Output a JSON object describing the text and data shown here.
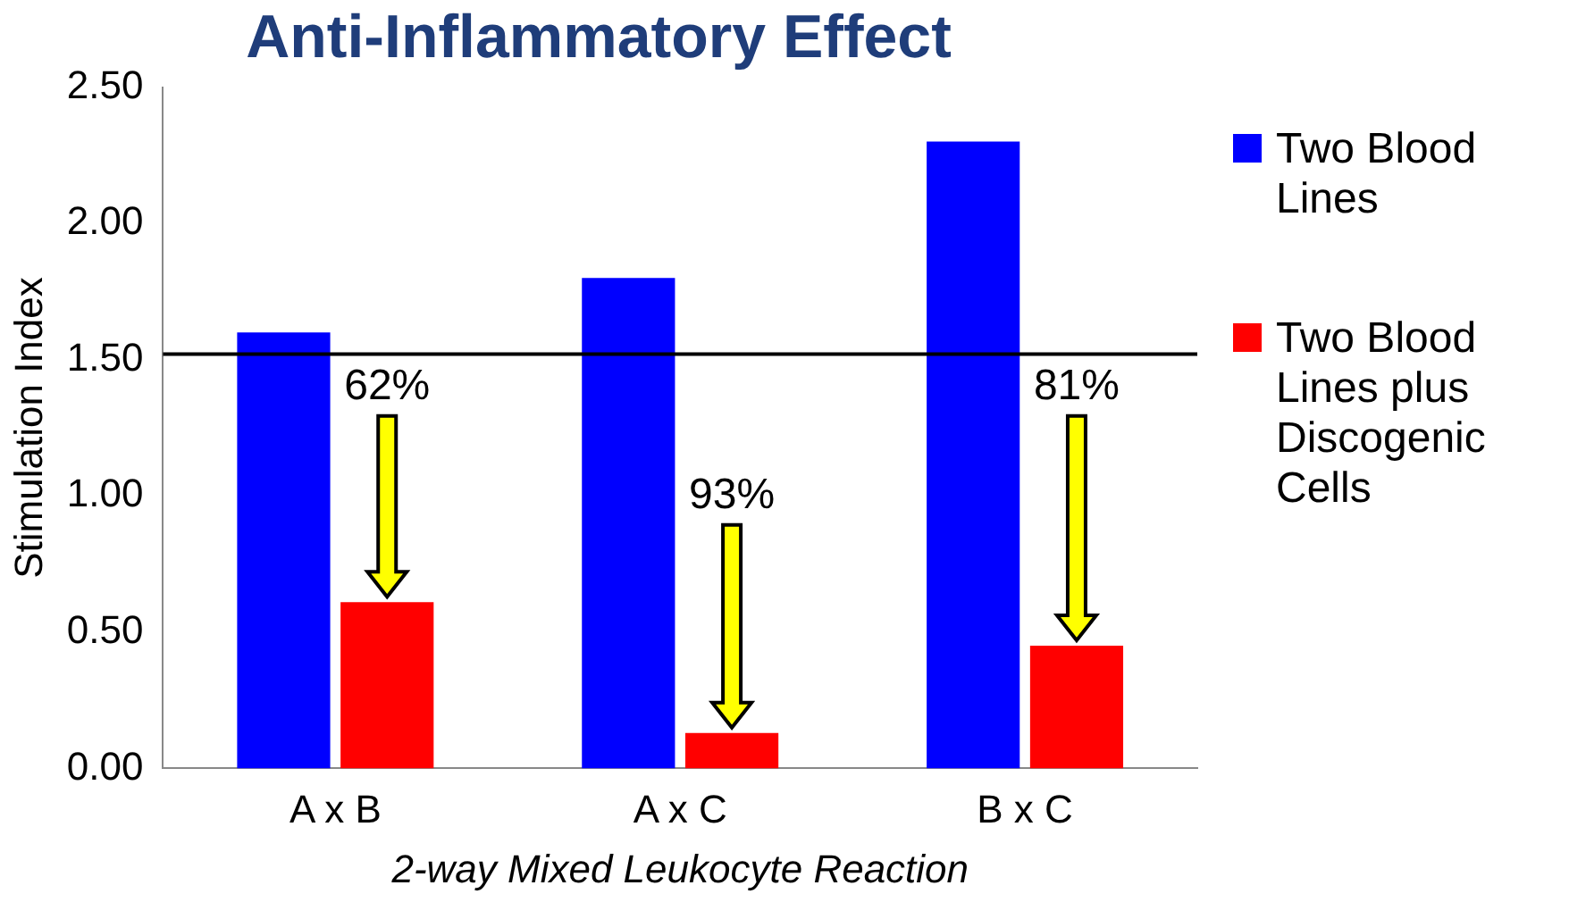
{
  "chart_data": {
    "type": "bar",
    "title": "Anti-Inflammatory Effect",
    "xlabel": "2-way Mixed Leukocyte Reaction",
    "ylabel": "Stimulation Index",
    "categories": [
      "A x B",
      "A x C",
      "B x C"
    ],
    "series": [
      {
        "name": "Two Blood Lines",
        "color": "#0000ff",
        "values": [
          1.6,
          1.8,
          2.3
        ]
      },
      {
        "name": "Two Blood Lines plus Discogenic Cells",
        "color": "#ff0000",
        "values": [
          0.61,
          0.13,
          0.45
        ]
      }
    ],
    "ylim": [
      0,
      2.5
    ],
    "yticks": [
      {
        "value": 0,
        "label": "0.00"
      },
      {
        "value": 0.5,
        "label": "0.50"
      },
      {
        "value": 1,
        "label": "1.00"
      },
      {
        "value": 1.5,
        "label": "1.50"
      },
      {
        "value": 2,
        "label": "2.00"
      },
      {
        "value": 2.5,
        "label": "2.50"
      }
    ],
    "grid": false,
    "legend": "right",
    "ref_lines": [
      {
        "axis": "y",
        "value": 1.52,
        "color": "#000000"
      }
    ],
    "annotations": [
      {
        "text": "62%",
        "x": "A x B",
        "y": 1.32
      },
      {
        "text": "93%",
        "x": "A x C",
        "y": 0.92
      },
      {
        "text": "81%",
        "x": "B x C",
        "y": 1.32
      }
    ]
  }
}
